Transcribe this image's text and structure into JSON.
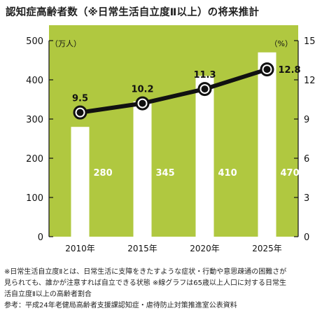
{
  "title": "認知症高齢者数（※日常生活自立度Ⅱ以上）の将来推計",
  "notes": {
    "line1": "※日常生活自立度Ⅱとは、日常生活に支障をきたすような症状・行動や意思疎通の困難さが",
    "line2": "見られても、誰かが注意すれば自立できる状態 ※線グラフは65歳以上人口に対する日常生",
    "line3": "活自立度Ⅱ以上の高齢者割合",
    "source": "参考：平成24年老健局高齢者支援課認知症・虐待防止対策推進室公表資料"
  },
  "colors": {
    "panel": "#b0c840",
    "bar": "#ffffff",
    "line": "#111111",
    "bar_label": "#ffffff",
    "line_label": "#111111"
  },
  "chart_data": {
    "type": "bar+line",
    "categories": [
      "2010年",
      "2015年",
      "2020年",
      "2025年"
    ],
    "bars": {
      "values": [
        280,
        345,
        410,
        470
      ],
      "labels": [
        "280",
        "345",
        "410",
        "470"
      ],
      "axis": "left"
    },
    "line": {
      "values": [
        9.5,
        10.2,
        11.3,
        12.8
      ],
      "labels": [
        "9.5",
        "10.2",
        "11.3",
        "12.8"
      ],
      "axis": "right"
    },
    "left_axis": {
      "unit": "（万人）",
      "ticks": [
        0,
        100,
        200,
        300,
        400,
        500
      ],
      "range": [
        0,
        500
      ]
    },
    "right_axis": {
      "unit": "（%）",
      "ticks": [
        0,
        3,
        6,
        9,
        12,
        15
      ],
      "range": [
        0,
        15
      ]
    },
    "grid": false
  }
}
